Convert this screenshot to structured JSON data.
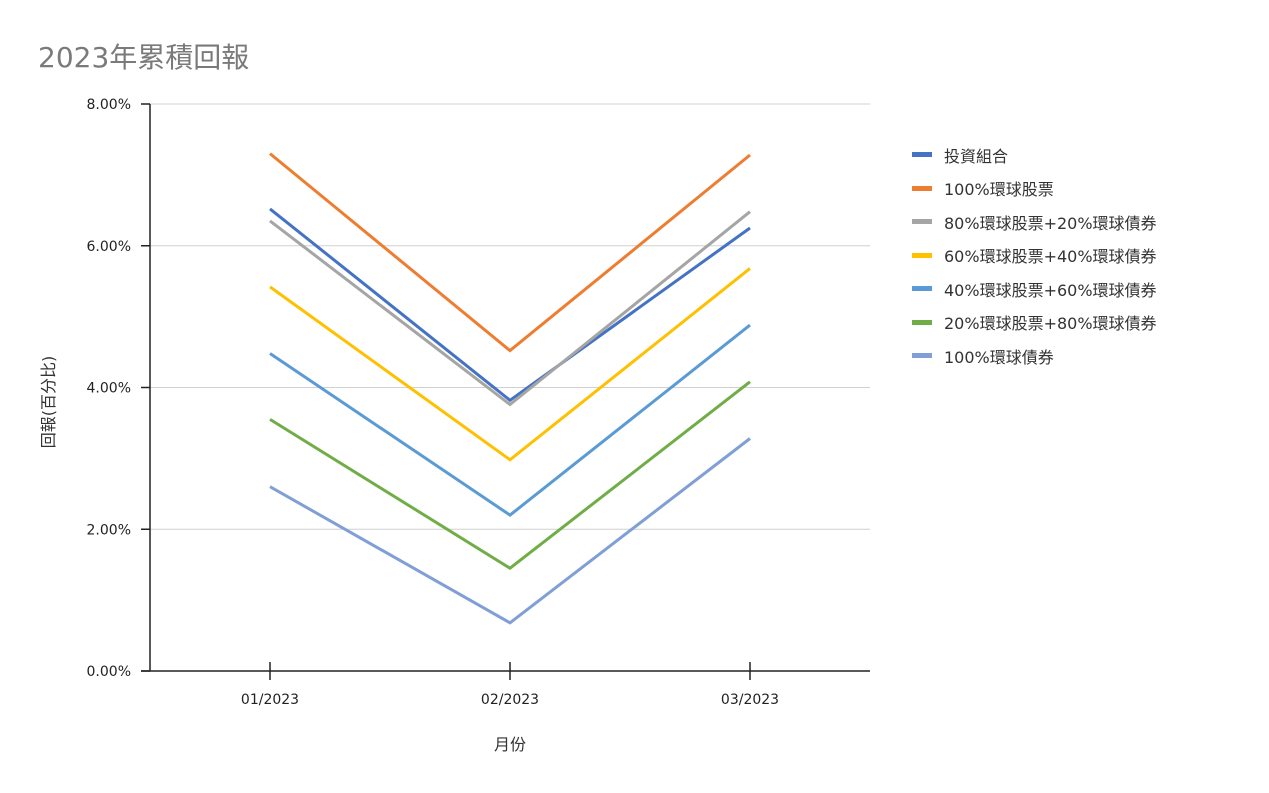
{
  "chart_data": {
    "type": "line",
    "title": "2023年累積回報",
    "xlabel": "月份",
    "ylabel": "回報(百分比)",
    "categories": [
      "01/2023",
      "02/2023",
      "03/2023"
    ],
    "ylim": [
      0,
      8
    ],
    "yticks": [
      0,
      2,
      4,
      6,
      8
    ],
    "ytick_labels": [
      "0.00%",
      "2.00%",
      "4.00%",
      "6.00%",
      "8.00%"
    ],
    "grid": true,
    "legend_position": "right",
    "series": [
      {
        "name": "投資組合",
        "color": "#4472c4",
        "values": [
          6.52,
          3.82,
          6.25
        ]
      },
      {
        "name": "100%環球股票",
        "color": "#ed7d31",
        "values": [
          7.3,
          4.52,
          7.28
        ]
      },
      {
        "name": "80%環球股票+20%環球債券",
        "color": "#a5a5a5",
        "values": [
          6.35,
          3.76,
          6.48
        ]
      },
      {
        "name": "60%環球股票+40%環球債券",
        "color": "#ffc000",
        "values": [
          5.42,
          2.98,
          5.68
        ]
      },
      {
        "name": "40%環球股票+60%環球債券",
        "color": "#5b9bd5",
        "values": [
          4.48,
          2.2,
          4.88
        ]
      },
      {
        "name": "20%環球股票+80%環球債券",
        "color": "#70ad47",
        "values": [
          3.55,
          1.45,
          4.08
        ]
      },
      {
        "name": "100%環球債券",
        "color": "#7f9fd6",
        "values": [
          2.6,
          0.68,
          3.28
        ]
      }
    ]
  }
}
